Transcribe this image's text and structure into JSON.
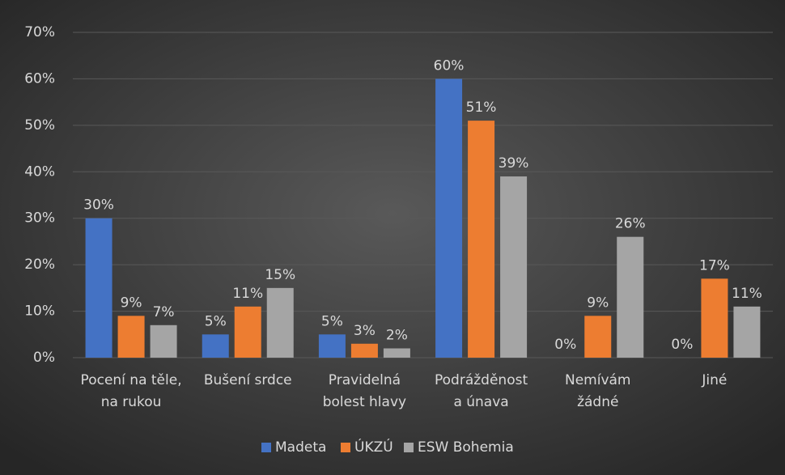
{
  "chart_data": {
    "type": "bar",
    "categories": [
      [
        "Pocení na těle,",
        "na rukou"
      ],
      [
        "Bušení srdce"
      ],
      [
        "Pravidelná",
        "bolest hlavy"
      ],
      [
        "Podrážděnost",
        "a únava"
      ],
      [
        "Nemívám",
        "žádné"
      ],
      [
        "Jiné"
      ]
    ],
    "series": [
      {
        "name": "Madeta",
        "color": "#4472c4",
        "values": [
          30,
          5,
          5,
          60,
          0,
          0
        ],
        "value_labels": [
          "30%",
          "5%",
          "5%",
          "60%",
          "0%",
          "0%"
        ]
      },
      {
        "name": "ÚKZÚ",
        "color": "#ed7d31",
        "values": [
          9,
          11,
          3,
          51,
          9,
          17
        ],
        "value_labels": [
          "9%",
          "11%",
          "3%",
          "51%",
          "9%",
          "17%"
        ]
      },
      {
        "name": "ESW Bohemia",
        "color": "#a5a5a5",
        "values": [
          7,
          15,
          2,
          39,
          26,
          11
        ],
        "value_labels": [
          "7%",
          "15%",
          "2%",
          "39%",
          "26%",
          "11%"
        ]
      }
    ],
    "ylim": [
      0,
      70
    ],
    "yticks": [
      {
        "value": 0,
        "label": "0%"
      },
      {
        "value": 10,
        "label": "10%"
      },
      {
        "value": 20,
        "label": "20%"
      },
      {
        "value": 30,
        "label": "30%"
      },
      {
        "value": 40,
        "label": "40%"
      },
      {
        "value": 50,
        "label": "50%"
      },
      {
        "value": 60,
        "label": "60%"
      },
      {
        "value": 70,
        "label": "70%"
      }
    ],
    "grid": true,
    "legend": "bottom"
  }
}
